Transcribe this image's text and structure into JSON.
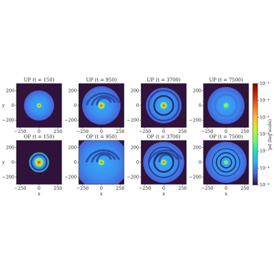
{
  "chart_data": [
    {
      "type": "heatmap",
      "title": "UP (t = 150)",
      "ylabel": "y",
      "xlim": [
        -300,
        300
      ],
      "ylim": [
        -300,
        300
      ],
      "xticks": [
        {
          "value": -250,
          "label": "−250"
        },
        0,
        250
      ],
      "yticks": [
        200,
        0,
        {
          "value": -200,
          "label": "−200"
        }
      ]
    },
    {
      "type": "heatmap",
      "title": "UP (t = 950)",
      "xlim": [
        -300,
        300
      ],
      "ylim": [
        -300,
        300
      ],
      "xticks": [
        {
          "value": -250,
          "label": "−250"
        },
        0,
        250
      ],
      "yticks": [
        200,
        0,
        {
          "value": -200,
          "label": "−200"
        }
      ]
    },
    {
      "type": "heatmap",
      "title": "UP (t = 3700)",
      "xlim": [
        -300,
        300
      ],
      "ylim": [
        -300,
        300
      ],
      "xticks": [
        {
          "value": -250,
          "label": "−250"
        },
        0,
        250
      ],
      "yticks": [
        200,
        0,
        {
          "value": -200,
          "label": "−200"
        }
      ]
    },
    {
      "type": "heatmap",
      "title": "UP (t = 7500)",
      "xlim": [
        -300,
        300
      ],
      "ylim": [
        -300,
        300
      ],
      "xticks": [
        {
          "value": -250,
          "label": "−250"
        },
        0,
        250
      ],
      "yticks": [
        200,
        0,
        {
          "value": -200,
          "label": "−200"
        }
      ]
    },
    {
      "type": "heatmap",
      "title": "OP (t = 150)",
      "xlabel": "x",
      "ylabel": "y",
      "xlim": [
        -300,
        300
      ],
      "ylim": [
        -300,
        300
      ],
      "xticks": [
        {
          "value": -250,
          "label": "−250"
        },
        0,
        250
      ],
      "yticks": [
        200,
        0,
        {
          "value": -200,
          "label": "−200"
        }
      ]
    },
    {
      "type": "heatmap",
      "title": "OP (t = 950)",
      "xlabel": "x",
      "xlim": [
        -300,
        300
      ],
      "ylim": [
        -300,
        300
      ],
      "xticks": [
        {
          "value": -250,
          "label": "−250"
        },
        0,
        250
      ],
      "yticks": [
        200,
        0,
        {
          "value": -200,
          "label": "−200"
        }
      ]
    },
    {
      "type": "heatmap",
      "title": "OP (t = 3700)",
      "xlabel": "x",
      "xlim": [
        -300,
        300
      ],
      "ylim": [
        -300,
        300
      ],
      "xticks": [
        {
          "value": -250,
          "label": "−250"
        },
        0,
        250
      ],
      "yticks": [
        200,
        0,
        {
          "value": -200,
          "label": "−200"
        }
      ]
    },
    {
      "type": "heatmap",
      "title": "OP (t = 7500)",
      "xlabel": "x",
      "xlim": [
        -300,
        300
      ],
      "ylim": [
        -300,
        300
      ],
      "xticks": [
        {
          "value": -250,
          "label": "−250"
        },
        0,
        250
      ],
      "yticks": [
        200,
        0,
        {
          "value": -200,
          "label": "−200"
        }
      ]
    },
    {
      "type": "colorbar",
      "label": "ρd (log scale)",
      "log": true,
      "ylim": [
        1e-09,
        0.001
      ],
      "colors": [
        "#30123b",
        "#4662d7",
        "#36aaf9",
        "#1ae4b6",
        "#72fe5e",
        "#c8ef34",
        "#faba39",
        "#f66b19",
        "#ca2a04",
        "#7a0403"
      ],
      "yticks": [
        {
          "value": 1e-09,
          "label": "10⁻⁹"
        },
        {
          "value": 1e-08,
          "label": "10⁻⁸"
        },
        {
          "value": 1e-07,
          "label": "10⁻⁷"
        },
        {
          "value": 1e-06,
          "label": "10⁻⁶"
        },
        {
          "value": 1e-05,
          "label": "10⁻⁵"
        },
        {
          "value": 0.0001,
          "label": "10⁻⁴"
        },
        {
          "value": 0.001,
          "label": "10⁻³"
        }
      ]
    }
  ]
}
